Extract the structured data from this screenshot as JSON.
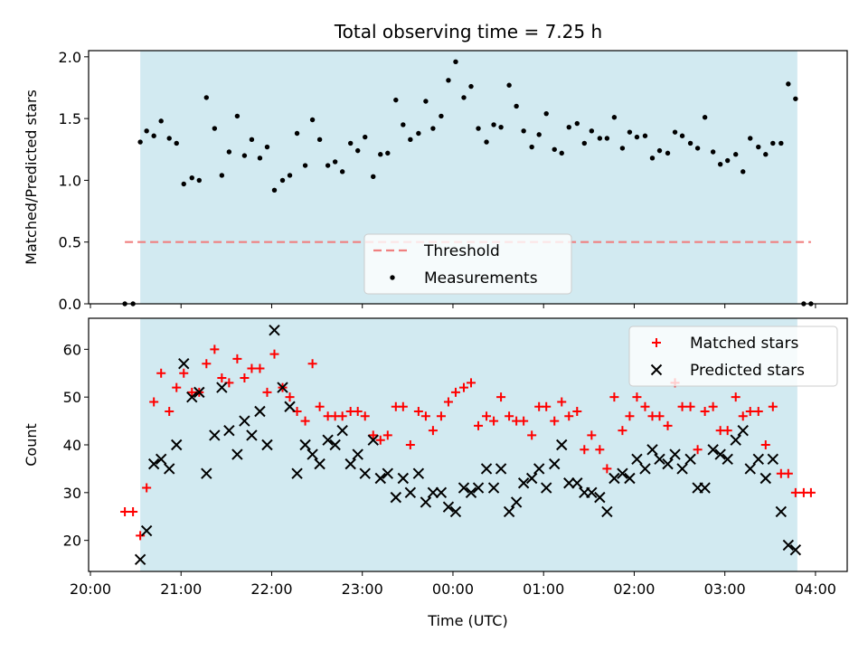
{
  "chart_data": [
    {
      "type": "scatter",
      "panel": "top",
      "title": "Total observing time = 7.25 h",
      "ylabel": "Matched/Predicted stars",
      "xlabel": "",
      "ylim": [
        0,
        2.05
      ],
      "yticks": [
        0.0,
        0.5,
        1.0,
        1.5,
        2.0
      ],
      "ytick_labels": [
        "0.0",
        "0.5",
        "1.0",
        "1.5",
        "2.0"
      ],
      "xlim": [
        -0.02,
        8.35
      ],
      "shaded_region": [
        0.55,
        7.8
      ],
      "threshold": 0.5,
      "legend": {
        "position": "bottom-center",
        "entries": [
          "Threshold",
          "Measurements"
        ]
      },
      "colors": {
        "threshold": "#f08080",
        "measurements": "#000000",
        "shade": "#add8e6"
      },
      "series": [
        {
          "name": "Measurements",
          "x": [
            0.38,
            0.47,
            0.55,
            0.62,
            0.7,
            0.78,
            0.87,
            0.95,
            1.03,
            1.12,
            1.2,
            1.28,
            1.37,
            1.45,
            1.53,
            1.62,
            1.7,
            1.78,
            1.87,
            1.95,
            2.03,
            2.12,
            2.2,
            2.28,
            2.37,
            2.45,
            2.53,
            2.62,
            2.7,
            2.78,
            2.87,
            2.95,
            3.03,
            3.12,
            3.2,
            3.28,
            3.37,
            3.45,
            3.53,
            3.62,
            3.7,
            3.78,
            3.87,
            3.95,
            4.03,
            4.12,
            4.2,
            4.28,
            4.37,
            4.45,
            4.53,
            4.62,
            4.7,
            4.78,
            4.87,
            4.95,
            5.03,
            5.12,
            5.2,
            5.28,
            5.37,
            5.45,
            5.53,
            5.62,
            5.7,
            5.78,
            5.87,
            5.95,
            6.03,
            6.12,
            6.2,
            6.28,
            6.37,
            6.45,
            6.53,
            6.62,
            6.7,
            6.78,
            6.87,
            6.95,
            7.03,
            7.12,
            7.2,
            7.28,
            7.37,
            7.45,
            7.53,
            7.62,
            7.7,
            7.78,
            7.87,
            7.95
          ],
          "y": [
            0.0,
            0.0,
            1.31,
            1.4,
            1.36,
            1.48,
            1.34,
            1.3,
            0.97,
            1.02,
            1.0,
            1.67,
            1.42,
            1.04,
            1.23,
            1.52,
            1.2,
            1.33,
            1.18,
            1.27,
            0.92,
            1.0,
            1.04,
            1.38,
            1.12,
            1.49,
            1.33,
            1.12,
            1.15,
            1.07,
            1.3,
            1.24,
            1.35,
            1.03,
            1.21,
            1.22,
            1.65,
            1.45,
            1.33,
            1.38,
            1.64,
            1.42,
            1.52,
            1.81,
            1.96,
            1.67,
            1.76,
            1.42,
            1.31,
            1.45,
            1.43,
            1.77,
            1.6,
            1.4,
            1.27,
            1.37,
            1.54,
            1.25,
            1.22,
            1.43,
            1.46,
            1.3,
            1.4,
            1.34,
            1.34,
            1.51,
            1.26,
            1.39,
            1.35,
            1.36,
            1.18,
            1.24,
            1.22,
            1.39,
            1.36,
            1.3,
            1.26,
            1.51,
            1.23,
            1.13,
            1.16,
            1.21,
            1.07,
            1.34,
            1.27,
            1.21,
            1.3,
            1.3,
            1.78,
            1.66,
            0.0,
            0.0
          ]
        }
      ]
    },
    {
      "type": "scatter",
      "panel": "bottom",
      "title": "",
      "ylabel": "Count",
      "xlabel": "Time (UTC)",
      "ylim": [
        13.5,
        66.5
      ],
      "yticks": [
        20,
        30,
        40,
        50,
        60
      ],
      "ytick_labels": [
        "20",
        "30",
        "40",
        "50",
        "60"
      ],
      "xlim": [
        -0.02,
        8.35
      ],
      "xticks": [
        0,
        1,
        2,
        3,
        4,
        5,
        6,
        7,
        8
      ],
      "xtick_labels": [
        "20:00",
        "21:00",
        "22:00",
        "23:00",
        "00:00",
        "01:00",
        "02:00",
        "03:00",
        "04:00"
      ],
      "shaded_region": [
        0.55,
        7.8
      ],
      "legend": {
        "position": "top-right",
        "entries": [
          "Matched stars",
          "Predicted stars"
        ]
      },
      "colors": {
        "matched": "#ff0000",
        "predicted": "#000000",
        "shade": "#add8e6"
      },
      "series": [
        {
          "name": "Matched stars",
          "marker": "+",
          "x": [
            0.38,
            0.47,
            0.55,
            0.62,
            0.7,
            0.78,
            0.87,
            0.95,
            1.03,
            1.12,
            1.2,
            1.28,
            1.37,
            1.45,
            1.53,
            1.62,
            1.7,
            1.78,
            1.87,
            1.95,
            2.03,
            2.12,
            2.2,
            2.28,
            2.37,
            2.45,
            2.53,
            2.62,
            2.7,
            2.78,
            2.87,
            2.95,
            3.03,
            3.12,
            3.2,
            3.28,
            3.37,
            3.45,
            3.53,
            3.62,
            3.7,
            3.78,
            3.87,
            3.95,
            4.03,
            4.12,
            4.2,
            4.28,
            4.37,
            4.45,
            4.53,
            4.62,
            4.7,
            4.78,
            4.87,
            4.95,
            5.03,
            5.12,
            5.2,
            5.28,
            5.37,
            5.45,
            5.53,
            5.62,
            5.7,
            5.78,
            5.87,
            5.95,
            6.03,
            6.12,
            6.2,
            6.28,
            6.37,
            6.45,
            6.53,
            6.62,
            6.7,
            6.78,
            6.87,
            6.95,
            7.03,
            7.12,
            7.2,
            7.28,
            7.37,
            7.45,
            7.53,
            7.62,
            7.7,
            7.78,
            7.87,
            7.95
          ],
          "y": [
            26,
            26,
            21,
            31,
            49,
            55,
            47,
            52,
            55,
            51,
            51,
            57,
            60,
            54,
            53,
            58,
            54,
            56,
            56,
            51,
            59,
            52,
            50,
            47,
            45,
            57,
            48,
            46,
            46,
            46,
            47,
            47,
            46,
            42,
            41,
            42,
            48,
            48,
            40,
            47,
            46,
            43,
            46,
            49,
            51,
            52,
            53,
            44,
            46,
            45,
            50,
            46,
            45,
            45,
            42,
            48,
            48,
            45,
            49,
            46,
            47,
            39,
            42,
            39,
            35,
            50,
            43,
            46,
            50,
            48,
            46,
            46,
            44,
            53,
            48,
            48,
            39,
            47,
            48,
            43,
            43,
            50,
            46,
            47,
            47,
            40,
            48,
            34,
            34,
            30,
            30,
            30
          ]
        },
        {
          "name": "Predicted stars",
          "marker": "x",
          "x": [
            0.55,
            0.62,
            0.7,
            0.78,
            0.87,
            0.95,
            1.03,
            1.12,
            1.2,
            1.28,
            1.37,
            1.45,
            1.53,
            1.62,
            1.7,
            1.78,
            1.87,
            1.95,
            2.03,
            2.12,
            2.2,
            2.28,
            2.37,
            2.45,
            2.53,
            2.62,
            2.7,
            2.78,
            2.87,
            2.95,
            3.03,
            3.12,
            3.2,
            3.28,
            3.37,
            3.45,
            3.53,
            3.62,
            3.7,
            3.78,
            3.87,
            3.95,
            4.03,
            4.12,
            4.2,
            4.28,
            4.37,
            4.45,
            4.53,
            4.62,
            4.7,
            4.78,
            4.87,
            4.95,
            5.03,
            5.12,
            5.2,
            5.28,
            5.37,
            5.45,
            5.53,
            5.62,
            5.7,
            5.78,
            5.87,
            5.95,
            6.03,
            6.12,
            6.2,
            6.28,
            6.37,
            6.45,
            6.53,
            6.62,
            6.7,
            6.78,
            6.87,
            6.95,
            7.03,
            7.12,
            7.2,
            7.28,
            7.37,
            7.45,
            7.53,
            7.62,
            7.7,
            7.78
          ],
          "y": [
            16,
            22,
            36,
            37,
            35,
            40,
            57,
            50,
            51,
            34,
            42,
            52,
            43,
            38,
            45,
            42,
            47,
            40,
            64,
            52,
            48,
            34,
            40,
            38,
            36,
            41,
            40,
            43,
            36,
            38,
            34,
            41,
            33,
            34,
            29,
            33,
            30,
            34,
            28,
            30,
            30,
            27,
            26,
            31,
            30,
            31,
            35,
            31,
            35,
            26,
            28,
            32,
            33,
            35,
            31,
            36,
            40,
            32,
            32,
            30,
            30,
            29,
            26,
            33,
            34,
            33,
            37,
            35,
            39,
            37,
            36,
            38,
            35,
            37,
            31,
            31,
            39,
            38,
            37,
            41,
            43,
            35,
            37,
            33,
            37,
            26,
            19,
            18
          ]
        }
      ]
    }
  ]
}
